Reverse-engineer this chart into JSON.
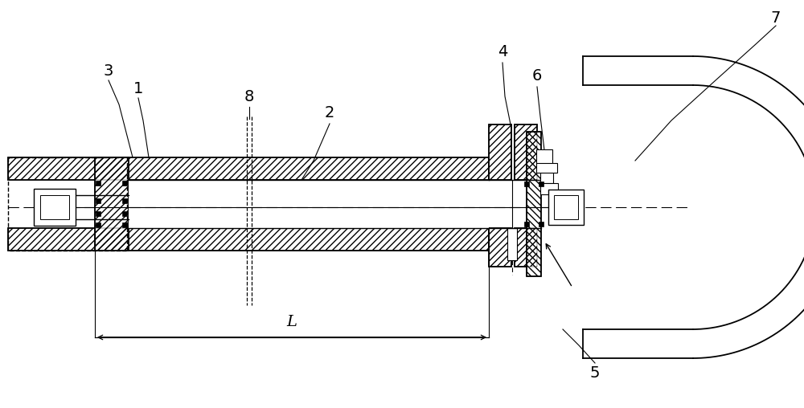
{
  "bg_color": "#ffffff",
  "line_color": "#000000",
  "lw": 1.0,
  "lw_thick": 1.3,
  "fig_width": 10.0,
  "fig_height": 5.08,
  "dpi": 100
}
